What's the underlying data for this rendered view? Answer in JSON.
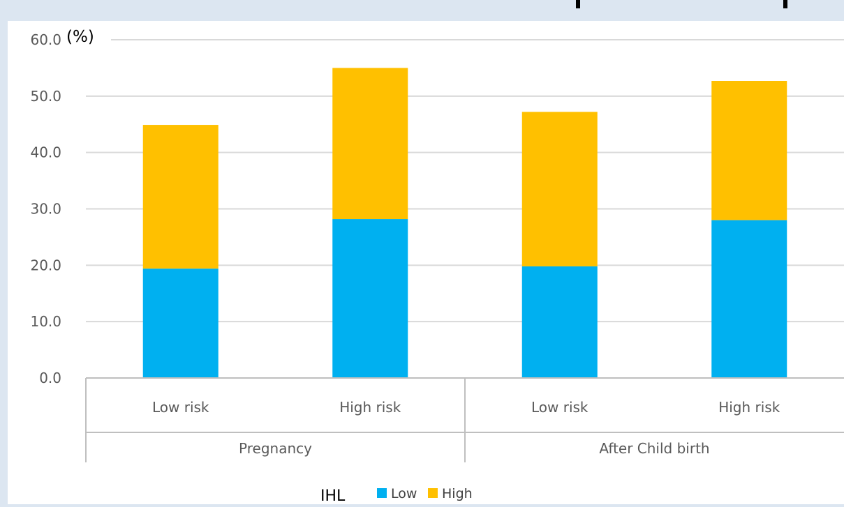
{
  "chart_data": {
    "type": "bar",
    "stacked": true,
    "y_unit_label": "(%)",
    "ylim": [
      0,
      60
    ],
    "yticks": [
      "0.0",
      "10.0",
      "20.0",
      "30.0",
      "40.0",
      "50.0",
      "60.0"
    ],
    "grid": true,
    "categories": [
      "Low risk",
      "High risk",
      "Low risk",
      "High risk"
    ],
    "groups": [
      {
        "label": "Pregnancy",
        "span": 2
      },
      {
        "label": "After Child birth",
        "span": 2
      }
    ],
    "series": [
      {
        "name": "Low",
        "color": "#00b0f0",
        "values": [
          19.4,
          28.2,
          19.8,
          28.0
        ]
      },
      {
        "name": "High",
        "color": "#ffc000",
        "values": [
          25.5,
          26.8,
          27.4,
          24.7
        ]
      }
    ],
    "legend": {
      "title": "IHL",
      "placement": "bottom"
    }
  }
}
